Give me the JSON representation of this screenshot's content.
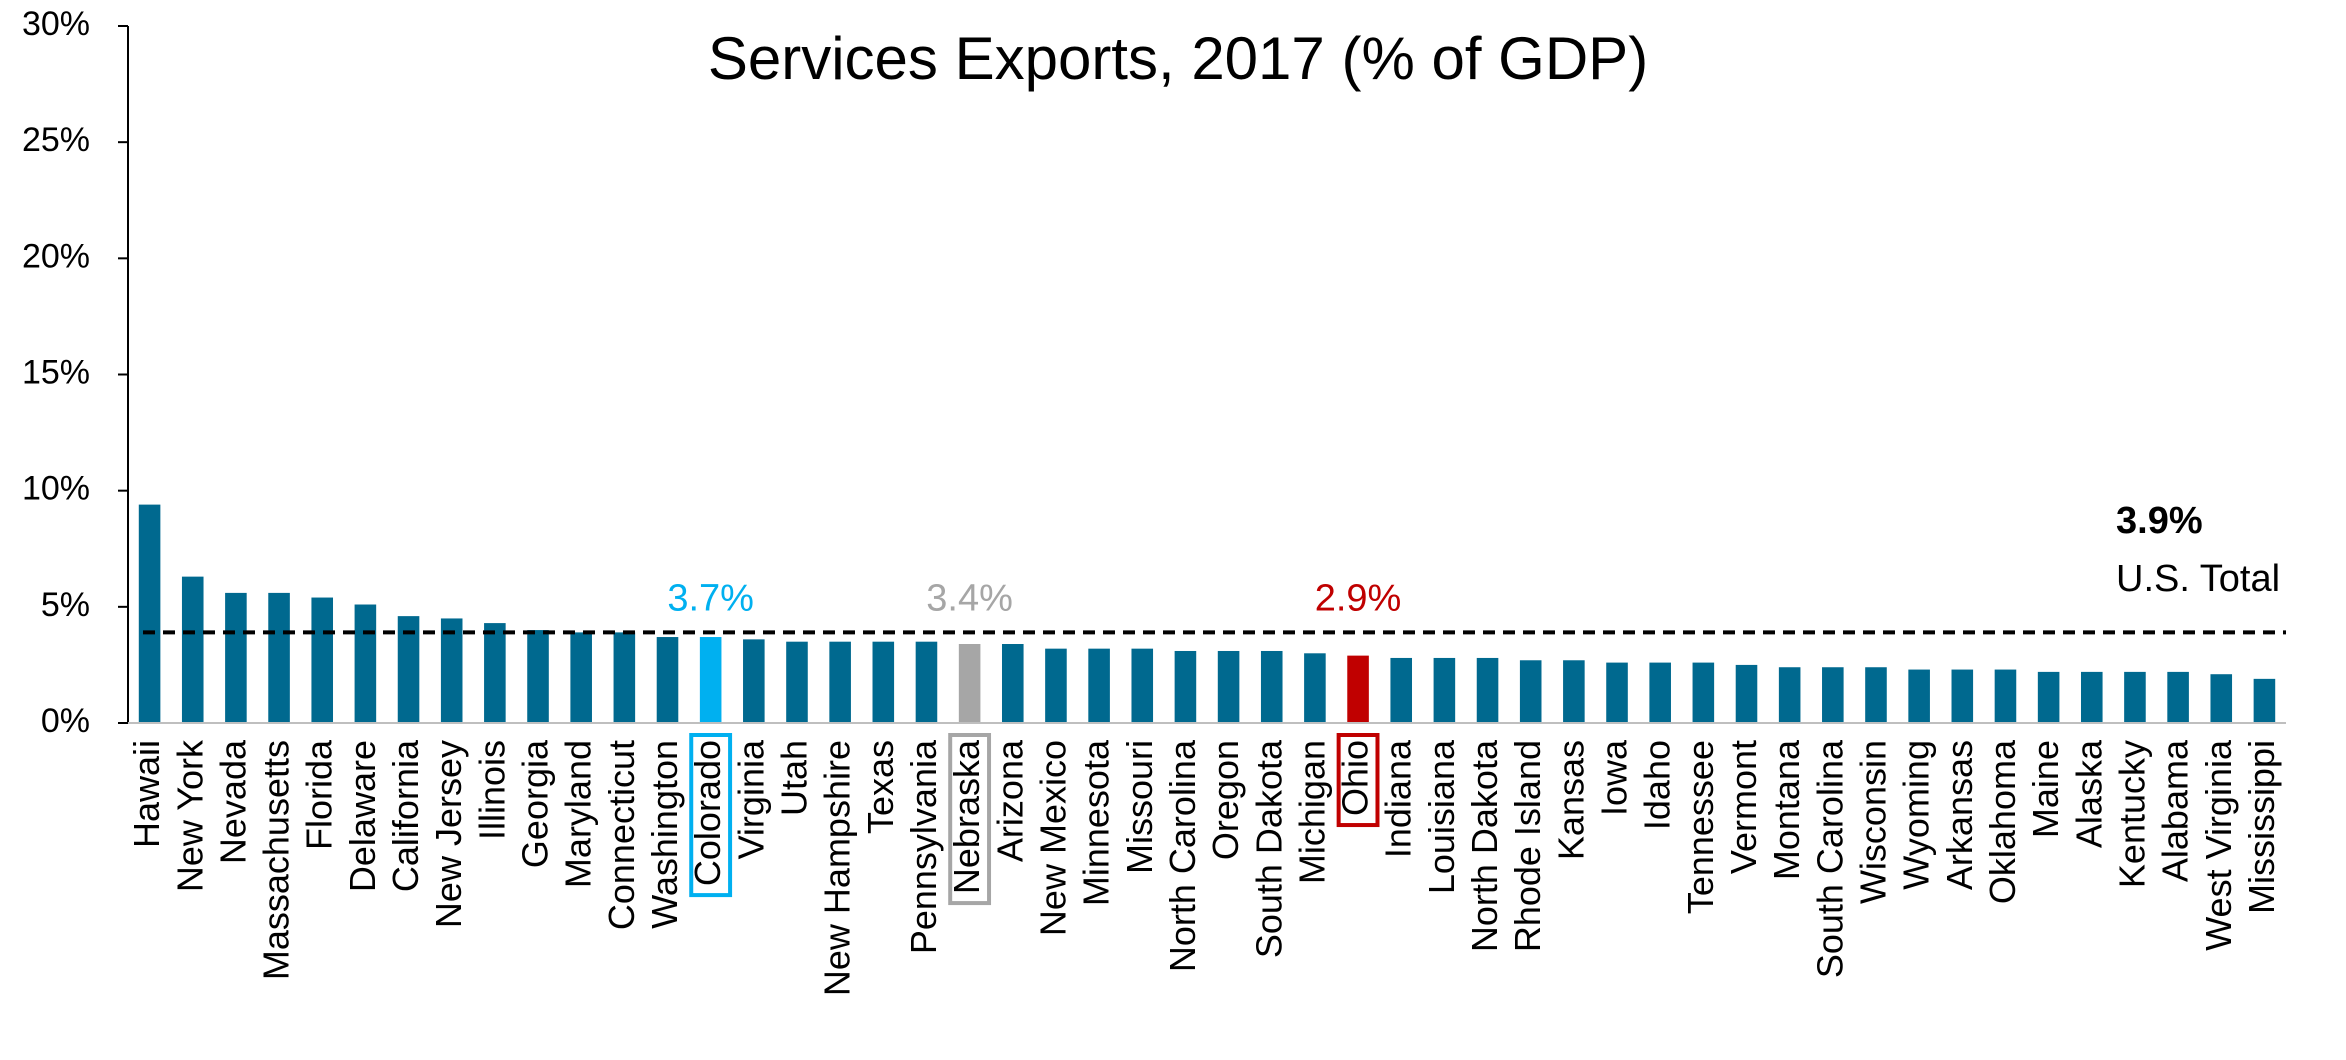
{
  "chart_data": {
    "type": "bar",
    "title": "Services Exports, 2017 (% of GDP)",
    "categories": [
      "Hawaii",
      "New York",
      "Nevada",
      "Massachusetts",
      "Florida",
      "Delaware",
      "California",
      "New Jersey",
      "Illinois",
      "Georgia",
      "Maryland",
      "Connecticut",
      "Washington",
      "Colorado",
      "Virginia",
      "Utah",
      "New Hampshire",
      "Texas",
      "Pennsylvania",
      "Nebraska",
      "Arizona",
      "New Mexico",
      "Minnesota",
      "Missouri",
      "North Carolina",
      "Oregon",
      "South Dakota",
      "Michigan",
      "Ohio",
      "Indiana",
      "Louisiana",
      "North Dakota",
      "Rhode Island",
      "Kansas",
      "Iowa",
      "Idaho",
      "Tennessee",
      "Vermont",
      "Montana",
      "South Carolina",
      "Wisconsin",
      "Wyoming",
      "Arkansas",
      "Oklahoma",
      "Maine",
      "Alaska",
      "Kentucky",
      "Alabama",
      "West Virginia",
      "Mississippi"
    ],
    "values": [
      9.4,
      6.3,
      5.6,
      5.6,
      5.4,
      5.1,
      4.6,
      4.5,
      4.3,
      4.0,
      3.9,
      3.9,
      3.7,
      3.7,
      3.6,
      3.5,
      3.5,
      3.5,
      3.5,
      3.4,
      3.4,
      3.2,
      3.2,
      3.2,
      3.1,
      3.1,
      3.1,
      3.0,
      2.9,
      2.8,
      2.8,
      2.8,
      2.7,
      2.7,
      2.6,
      2.6,
      2.6,
      2.5,
      2.4,
      2.4,
      2.4,
      2.3,
      2.3,
      2.3,
      2.2,
      2.2,
      2.2,
      2.2,
      2.1,
      1.9
    ],
    "value_labels": [
      null,
      null,
      null,
      null,
      null,
      null,
      null,
      null,
      null,
      null,
      null,
      null,
      null,
      "3.7%",
      null,
      null,
      null,
      null,
      null,
      "3.4%",
      null,
      null,
      null,
      null,
      null,
      null,
      null,
      null,
      "2.9%",
      null,
      null,
      null,
      null,
      null,
      null,
      null,
      null,
      null,
      null,
      null,
      null,
      null,
      null,
      null,
      null,
      null,
      null,
      null,
      null,
      null
    ],
    "color": "#00698f",
    "colors": [
      "#00698f",
      "#00698f",
      "#00698f",
      "#00698f",
      "#00698f",
      "#00698f",
      "#00698f",
      "#00698f",
      "#00698f",
      "#00698f",
      "#00698f",
      "#00698f",
      "#00698f",
      "#00b0f0",
      "#00698f",
      "#00698f",
      "#00698f",
      "#00698f",
      "#00698f",
      "#a6a6a6",
      "#00698f",
      "#00698f",
      "#00698f",
      "#00698f",
      "#00698f",
      "#00698f",
      "#00698f",
      "#00698f",
      "#c00000",
      "#00698f",
      "#00698f",
      "#00698f",
      "#00698f",
      "#00698f",
      "#00698f",
      "#00698f",
      "#00698f",
      "#00698f",
      "#00698f",
      "#00698f",
      "#00698f",
      "#00698f",
      "#00698f",
      "#00698f",
      "#00698f",
      "#00698f",
      "#00698f",
      "#00698f",
      "#00698f",
      "#00698f"
    ],
    "reference_line": {
      "value": 3.9,
      "value_label": "3.9%",
      "label": "U.S. Total"
    },
    "ylim": [
      0,
      30
    ],
    "yticks": [
      {
        "value": 0,
        "label": "0%"
      },
      {
        "value": 5,
        "label": "5%"
      },
      {
        "value": 10,
        "label": "10%"
      },
      {
        "value": 15,
        "label": "15%"
      },
      {
        "value": 20,
        "label": "20%"
      },
      {
        "value": 25,
        "label": "25%"
      },
      {
        "value": 30,
        "label": "30%"
      }
    ],
    "grid": false
  }
}
